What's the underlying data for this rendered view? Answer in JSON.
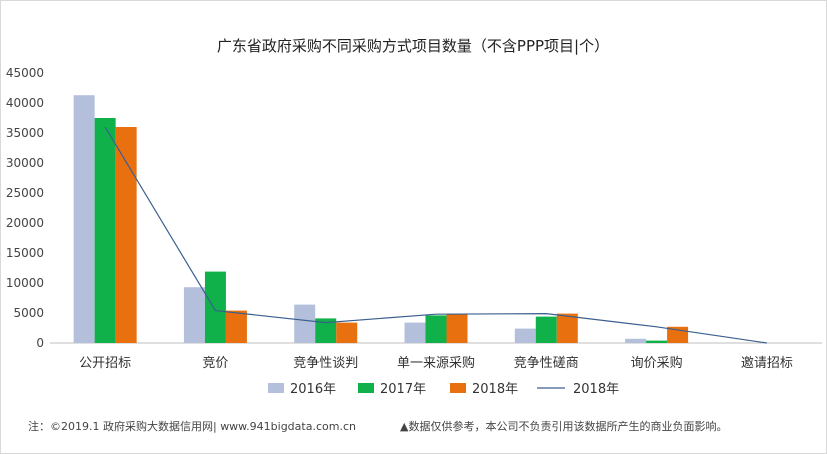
{
  "chart_data": {
    "type": "bar",
    "title": "广东省政府采购不同采购方式项目数量（不含PPP项目|个）",
    "categories": [
      "公开招标",
      "竞价",
      "竞争性谈判",
      "单一来源采购",
      "竞争性磋商",
      "询价采购",
      "邀请招标"
    ],
    "series": [
      {
        "name": "2016年",
        "kind": "bar",
        "color": "#b4c0db",
        "values": [
          41300,
          9300,
          6400,
          3400,
          2400,
          700,
          0
        ]
      },
      {
        "name": "2017年",
        "kind": "bar",
        "color": "#10b04a",
        "values": [
          37500,
          11900,
          4100,
          4600,
          4400,
          400,
          0
        ]
      },
      {
        "name": "2018年",
        "kind": "bar",
        "color": "#e8700f",
        "values": [
          36000,
          5400,
          3400,
          4800,
          4900,
          2700,
          0
        ]
      },
      {
        "name": "2018年",
        "kind": "line",
        "color": "#3b5f8f",
        "values": [
          36000,
          5400,
          3400,
          4800,
          4900,
          2700,
          0
        ]
      }
    ],
    "ylim": [
      0,
      45000
    ],
    "yticks": [
      0,
      5000,
      10000,
      15000,
      20000,
      25000,
      30000,
      35000,
      40000,
      45000
    ],
    "xlabel": "",
    "ylabel": "",
    "legend": "bottom"
  },
  "footer": {
    "note": "注：©2019.1 政府采购大数据信用网| www.941bigdata.com.cn",
    "disclaimer": "▲数据仅供参考，本公司不负责引用该数据所产生的商业负面影响。"
  }
}
